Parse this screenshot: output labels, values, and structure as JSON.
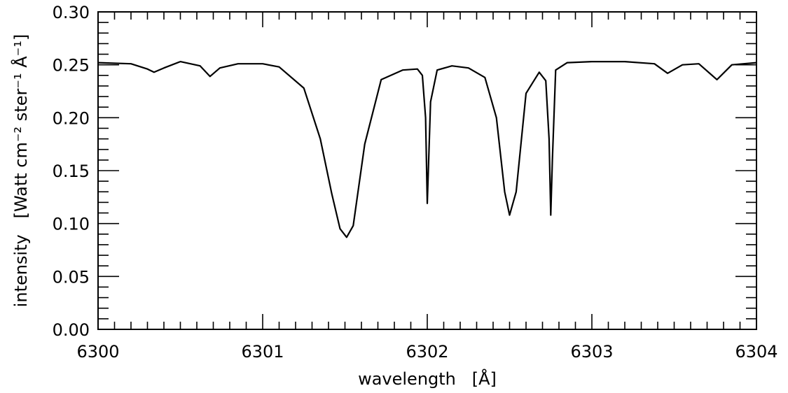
{
  "chart_data": {
    "type": "line",
    "title": "",
    "xlabel": "wavelength   [Å]",
    "ylabel": "intensity   [Watt cm⁻² ster⁻¹ Å⁻¹]",
    "xlim": [
      6300,
      6304
    ],
    "ylim": [
      0.0,
      0.3
    ],
    "xticks": [
      6300,
      6301,
      6302,
      6303,
      6304
    ],
    "xtick_labels": [
      "6300",
      "6301",
      "6302",
      "6303",
      "6304"
    ],
    "yticks": [
      0.0,
      0.05,
      0.1,
      0.15,
      0.2,
      0.25,
      0.3
    ],
    "ytick_labels": [
      "0.00",
      "0.05",
      "0.10",
      "0.15",
      "0.20",
      "0.25",
      "0.30"
    ],
    "grid": false,
    "series": [
      {
        "x": [
          6300.0,
          6300.2,
          6300.3,
          6300.34,
          6300.4,
          6300.5,
          6300.62,
          6300.68,
          6300.74,
          6300.85,
          6301.0,
          6301.1,
          6301.25,
          6301.35,
          6301.42,
          6301.47,
          6301.51,
          6301.55,
          6301.62,
          6301.72,
          6301.85,
          6301.94,
          6301.97,
          6301.99,
          6302.0,
          6302.02,
          6302.06,
          6302.15,
          6302.25,
          6302.35,
          6302.42,
          6302.47,
          6302.5,
          6302.54,
          6302.6,
          6302.68,
          6302.72,
          6302.74,
          6302.75,
          6302.76,
          6302.78,
          6302.85,
          6303.0,
          6303.2,
          6303.38,
          6303.46,
          6303.55,
          6303.65,
          6303.76,
          6303.85,
          6304.0
        ],
        "y": [
          0.252,
          0.251,
          0.246,
          0.243,
          0.247,
          0.253,
          0.249,
          0.239,
          0.247,
          0.251,
          0.251,
          0.248,
          0.228,
          0.18,
          0.128,
          0.095,
          0.087,
          0.098,
          0.175,
          0.236,
          0.245,
          0.246,
          0.24,
          0.2,
          0.119,
          0.215,
          0.245,
          0.249,
          0.247,
          0.238,
          0.2,
          0.13,
          0.108,
          0.13,
          0.223,
          0.243,
          0.235,
          0.18,
          0.108,
          0.16,
          0.245,
          0.252,
          0.253,
          0.253,
          0.251,
          0.242,
          0.25,
          0.251,
          0.236,
          0.25,
          0.252
        ]
      }
    ]
  }
}
